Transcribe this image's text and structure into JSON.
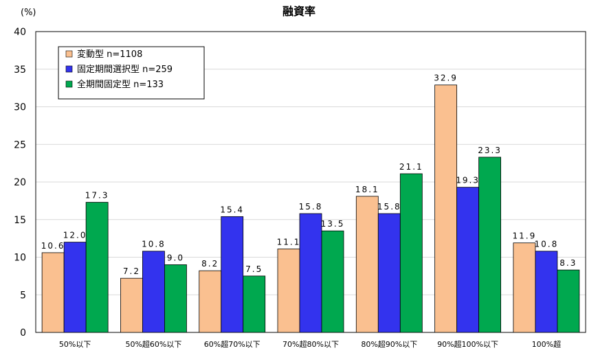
{
  "chart_data": {
    "type": "bar",
    "title": "融資率",
    "unit_label": "(%)",
    "categories": [
      "50%以下",
      "50%超60%以下",
      "60%超70%以下",
      "70%超80%以下",
      "80%超90%以下",
      "90%超100%以下",
      "100%超"
    ],
    "series": [
      {
        "name": "変動型 n=1108",
        "color": "#FAC090",
        "values": [
          10.6,
          7.2,
          8.2,
          11.1,
          18.1,
          32.9,
          11.9
        ],
        "labels": [
          "10.6",
          "7.2",
          "8.2",
          "11.1",
          "18.1",
          "32.9",
          "11.9"
        ]
      },
      {
        "name": "固定期間選択型 n=259",
        "color": "#3333EE",
        "values": [
          12.0,
          10.8,
          15.4,
          15.8,
          15.8,
          19.3,
          10.8
        ],
        "labels": [
          "12.0",
          "10.8",
          "15.4",
          "15.8",
          "15.8",
          "19.3",
          "10.8"
        ]
      },
      {
        "name": "全期間固定型 n=133",
        "color": "#00A84F",
        "values": [
          17.3,
          9.0,
          7.5,
          13.5,
          21.1,
          23.3,
          8.3
        ],
        "labels": [
          "17.3",
          "9.0",
          "7.5",
          "13.5",
          "21.1",
          "23.3",
          "8.3"
        ]
      }
    ],
    "ylim": [
      0,
      40
    ],
    "yticks": [
      "0",
      "5",
      "10",
      "15",
      "20",
      "25",
      "30",
      "35",
      "40"
    ],
    "grid": true,
    "legend_position": "top-left"
  }
}
